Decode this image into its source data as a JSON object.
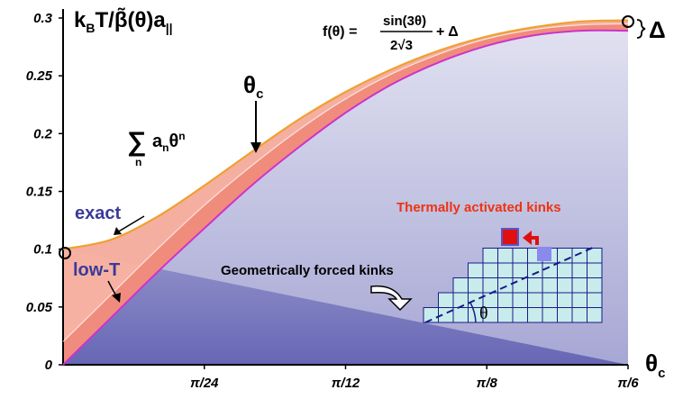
{
  "chart_data": {
    "type": "area",
    "xlabel": "θc",
    "x_ticks": [
      "π/24",
      "π/12",
      "π/8",
      "π/6"
    ],
    "y_ticks": [
      "0",
      "0.05",
      "0.1",
      "0.15",
      "0.2",
      "0.25",
      "0.3"
    ],
    "xlim_fraction_of_pi": [
      0,
      0.16667
    ],
    "ylim": [
      0,
      0.32
    ],
    "ylabel_parts": {
      "kb": "k",
      "b_sub": "B",
      "t": "T/",
      "beta": "β̃(θ)a",
      "par_sub": "||"
    },
    "formula": {
      "lhs": "f(θ) =",
      "numerator": "sin(3θ)",
      "denominator": "2√3",
      "plus": "+ Δ"
    },
    "delta_label": "Δ",
    "theta_c_label": {
      "main": "θ",
      "sub": "c"
    },
    "series_labels": {
      "sum": {
        "sigma": "∑",
        "index": "n",
        "term": "a",
        "term_sub": "n",
        "theta": "θ",
        "theta_sup": "n"
      },
      "exact": "exact",
      "low_t": "low-T"
    },
    "inset": {
      "thermal": "Thermally activated kinks",
      "geometric": "Geometrically forced kinks",
      "angle": "θ"
    },
    "series": [
      {
        "name": "exact",
        "x": [
          0,
          0.01389,
          0.02778,
          0.04167,
          0.05556,
          0.06944,
          0.08333,
          0.09722,
          0.11111,
          0.125,
          0.13889,
          0.15278,
          0.16667
        ],
        "values": [
          0.1,
          0.108,
          0.128,
          0.155,
          0.184,
          0.212,
          0.236,
          0.256,
          0.272,
          0.284,
          0.292,
          0.297,
          0.298
        ]
      },
      {
        "name": "low-T",
        "x": [
          0,
          0.01389,
          0.02778,
          0.04167,
          0.05556,
          0.06944,
          0.08333,
          0.09722,
          0.11111,
          0.125,
          0.13889,
          0.15278,
          0.16667
        ],
        "values": [
          0,
          0.04,
          0.08,
          0.118,
          0.155,
          0.188,
          0.218,
          0.243,
          0.262,
          0.276,
          0.285,
          0.289,
          0.289
        ]
      },
      {
        "name": "sum",
        "x": [
          0,
          0.01389,
          0.02778,
          0.04167,
          0.05556,
          0.06944,
          0.08333,
          0.09722,
          0.11111,
          0.125,
          0.13889,
          0.15278,
          0.16667
        ],
        "values": [
          0.02,
          0.06,
          0.1,
          0.138,
          0.172,
          0.203,
          0.23,
          0.252,
          0.269,
          0.282,
          0.29,
          0.294,
          0.295
        ]
      }
    ],
    "colors": {
      "exact": "#f0a030",
      "low_t": "#cc33cc",
      "fill_top": "#d8d8ee",
      "fill_bottom": "#6a6ab8",
      "band": "#f6a898",
      "band_dark": "#ee8070",
      "kink_red": "#e01010",
      "kink_purple": "#8a8aee",
      "grid_cell": "#c8ecec",
      "title_thermal": "#ee3311"
    },
    "grid": false
  }
}
